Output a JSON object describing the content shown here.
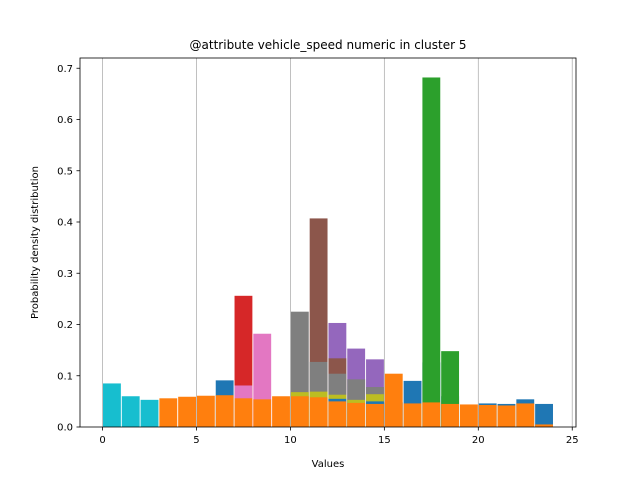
{
  "chart_data": {
    "type": "bar",
    "title": "@attribute vehicle_speed numeric in cluster  5",
    "xlabel": "Values",
    "ylabel": "Probability density distribution",
    "xlim": [
      -1.2,
      25.2
    ],
    "ylim": [
      0,
      0.72
    ],
    "xticks": [
      0,
      5,
      10,
      15,
      20,
      25
    ],
    "yticks": [
      0.0,
      0.1,
      0.2,
      0.3,
      0.4,
      0.5,
      0.6,
      0.7
    ],
    "xtick_labels": [
      "0",
      "5",
      "10",
      "15",
      "20",
      "25"
    ],
    "ytick_labels": [
      "0.0",
      "0.1",
      "0.2",
      "0.3",
      "0.4",
      "0.5",
      "0.6",
      "0.7"
    ],
    "grid": "x",
    "bar_width": 0.95,
    "series": [
      {
        "color": "#1f77b4",
        "bars": [
          [
            6.5,
            0.091
          ],
          [
            16.5,
            0.09
          ],
          [
            17.5,
            0.126
          ],
          [
            18.5,
            0.06
          ],
          [
            20.5,
            0.046
          ],
          [
            21.5,
            0.045
          ],
          [
            22.5,
            0.054
          ],
          [
            23.5,
            0.045
          ]
        ]
      },
      {
        "color": "#2ca02c",
        "bars": [
          [
            17.5,
            0.682
          ],
          [
            18.5,
            0.148
          ]
        ]
      },
      {
        "color": "#d62728",
        "bars": [
          [
            7.5,
            0.256
          ]
        ]
      },
      {
        "color": "#9467bd",
        "bars": [
          [
            12.5,
            0.203
          ],
          [
            13.5,
            0.153
          ],
          [
            14.5,
            0.132
          ]
        ]
      },
      {
        "color": "#8c564b",
        "bars": [
          [
            11.5,
            0.407
          ],
          [
            12.5,
            0.134
          ]
        ]
      },
      {
        "color": "#7f7f7f",
        "bars": [
          [
            10.5,
            0.225
          ],
          [
            11.5,
            0.127
          ],
          [
            12.5,
            0.104
          ],
          [
            13.5,
            0.093
          ],
          [
            14.5,
            0.078
          ]
        ]
      },
      {
        "color": "#e377c2",
        "bars": [
          [
            7.5,
            0.081
          ],
          [
            8.5,
            0.182
          ]
        ]
      },
      {
        "color": "#bcbd22",
        "bars": [
          [
            10.5,
            0.068
          ],
          [
            11.5,
            0.069
          ],
          [
            12.5,
            0.063
          ],
          [
            13.5,
            0.053
          ],
          [
            14.5,
            0.064
          ]
        ]
      },
      {
        "color": "#1f77b4",
        "bars": [
          [
            12.5,
            0.055
          ],
          [
            14.5,
            0.05
          ],
          [
            15.5,
            0.048
          ]
        ]
      },
      {
        "color": "#17becf",
        "bars": [
          [
            0.5,
            0.085
          ],
          [
            1.5,
            0.06
          ],
          [
            2.5,
            0.053
          ]
        ]
      },
      {
        "color": "#ff7f0e",
        "bars": [
          [
            3.5,
            0.056
          ],
          [
            4.5,
            0.059
          ],
          [
            5.5,
            0.061
          ],
          [
            6.5,
            0.062
          ],
          [
            7.5,
            0.056
          ],
          [
            8.5,
            0.054
          ],
          [
            9.5,
            0.06
          ],
          [
            10.5,
            0.06
          ],
          [
            11.5,
            0.058
          ],
          [
            12.5,
            0.05
          ],
          [
            13.5,
            0.047
          ],
          [
            14.5,
            0.045
          ],
          [
            15.5,
            0.104
          ],
          [
            16.5,
            0.046
          ],
          [
            17.5,
            0.048
          ],
          [
            18.5,
            0.045
          ],
          [
            19.5,
            0.044
          ],
          [
            20.5,
            0.043
          ],
          [
            21.5,
            0.042
          ],
          [
            22.5,
            0.046
          ],
          [
            23.5,
            0.005
          ]
        ]
      }
    ]
  }
}
